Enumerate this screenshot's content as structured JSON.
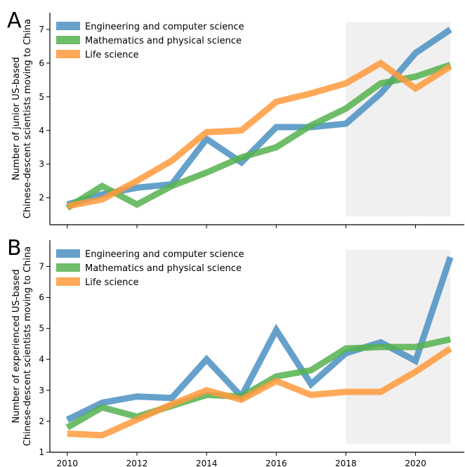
{
  "chart_data": [
    {
      "type": "line",
      "panel_label": "A",
      "ylabel_lines": [
        "Number of junior US-based",
        "Chinese-descent scientists moving to China"
      ],
      "xlabel": "",
      "x": [
        2010,
        2011,
        2012,
        2013,
        2014,
        2015,
        2016,
        2017,
        2018,
        2019,
        2020,
        2021
      ],
      "xlim": [
        2009.5,
        2021.4
      ],
      "ylim": [
        1.2,
        7.5
      ],
      "yticks": [
        2,
        3,
        4,
        5,
        6,
        7
      ],
      "highlight_range": [
        2018,
        2021
      ],
      "legend_position": "top-left",
      "grid": false,
      "series": [
        {
          "name": "Engineering and computer science",
          "color": "#4a90c2",
          "values": [
            1.8,
            2.1,
            2.3,
            2.4,
            3.75,
            3.05,
            4.1,
            4.1,
            4.2,
            5.1,
            6.3,
            7.0
          ]
        },
        {
          "name": "Mathematics and physical science",
          "color": "#55b14d",
          "values": [
            1.7,
            2.35,
            1.8,
            2.35,
            2.75,
            3.2,
            3.5,
            4.15,
            4.65,
            5.4,
            5.6,
            5.95
          ]
        },
        {
          "name": "Life science",
          "color": "#ff9a3c",
          "values": [
            1.75,
            1.95,
            2.5,
            3.1,
            3.95,
            4.0,
            4.85,
            5.1,
            5.4,
            6.0,
            5.25,
            5.9
          ]
        }
      ]
    },
    {
      "type": "line",
      "panel_label": "B",
      "ylabel_lines": [
        "Number of experienced US-based",
        "Chinese-descent scientists moving to China"
      ],
      "xlabel": "",
      "x": [
        2010,
        2011,
        2012,
        2013,
        2014,
        2015,
        2016,
        2017,
        2018,
        2019,
        2020,
        2021
      ],
      "xlim": [
        2009.5,
        2021.4
      ],
      "ylim": [
        1,
        7.85
      ],
      "yticks": [
        1,
        2,
        3,
        4,
        5,
        6,
        7
      ],
      "xticks": [
        2010,
        2012,
        2014,
        2016,
        2018,
        2020
      ],
      "highlight_range": [
        2018,
        2021
      ],
      "legend_position": "top-left",
      "grid": false,
      "series": [
        {
          "name": "Engineering and computer science",
          "color": "#4a90c2",
          "values": [
            2.05,
            2.6,
            2.8,
            2.75,
            4.0,
            2.8,
            4.95,
            3.2,
            4.2,
            4.55,
            3.95,
            7.3
          ]
        },
        {
          "name": "Mathematics and physical science",
          "color": "#55b14d",
          "values": [
            1.8,
            2.45,
            2.15,
            2.5,
            2.85,
            2.8,
            3.45,
            3.65,
            4.35,
            4.4,
            4.4,
            4.65
          ]
        },
        {
          "name": "Life science",
          "color": "#ff9a3c",
          "values": [
            1.6,
            1.55,
            2.05,
            2.55,
            3.0,
            2.7,
            3.3,
            2.85,
            2.95,
            2.95,
            3.6,
            4.35
          ]
        }
      ]
    }
  ]
}
